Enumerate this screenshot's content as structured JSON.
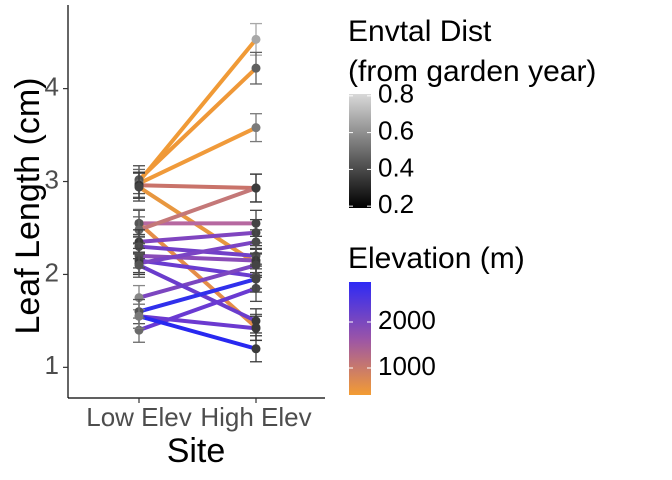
{
  "chart_data": {
    "type": "reaction-norm",
    "x_label": "Site",
    "y_label": "Leaf Length (cm)",
    "categories": [
      "Low Elev",
      "High Elev"
    ],
    "ylim": [
      0.67,
      4.9
    ],
    "yticks": [
      1,
      2,
      3,
      4
    ],
    "series": [
      {
        "color": "#f09a36",
        "values": [
          3.0,
          4.53
        ],
        "errors": [
          0.17,
          0.17
        ],
        "point_colors": [
          "#9a9a9a",
          "#a8a8a8"
        ]
      },
      {
        "color": "#ef9838",
        "values": [
          3.02,
          4.22
        ],
        "errors": [
          0.15,
          0.17
        ],
        "point_colors": [
          "#555555",
          "#606060"
        ]
      },
      {
        "color": "#f09a3a",
        "values": [
          2.98,
          3.58
        ],
        "errors": [
          0.15,
          0.15
        ],
        "point_colors": [
          "#666666",
          "#7a7a7a"
        ]
      },
      {
        "color": "#c9736a",
        "values": [
          2.96,
          2.93
        ],
        "errors": [
          0.14,
          0.15
        ],
        "point_colors": [
          "#333333",
          "#3a3a3a"
        ]
      },
      {
        "color": "#e8973f",
        "values": [
          2.94,
          2.12
        ],
        "errors": [
          0.15,
          0.15
        ],
        "point_colors": [
          "#444444",
          "#4a4a4a"
        ]
      },
      {
        "color": "#e58d48",
        "values": [
          2.55,
          1.43
        ],
        "errors": [
          0.15,
          0.14
        ],
        "point_colors": [
          "#777777",
          "#555555"
        ]
      },
      {
        "color": "#b668a0",
        "values": [
          2.55,
          2.55
        ],
        "errors": [
          0.14,
          0.14
        ],
        "point_colors": [
          "#555555",
          "#444444"
        ]
      },
      {
        "color": "#c47878",
        "values": [
          2.48,
          2.93
        ],
        "errors": [
          0.14,
          0.15
        ],
        "point_colors": [
          "#666666",
          "#3c3c3c"
        ]
      },
      {
        "color": "#8045c0",
        "values": [
          2.35,
          2.45
        ],
        "errors": [
          0.13,
          0.14
        ],
        "point_colors": [
          "#3a3a3a",
          "#444444"
        ]
      },
      {
        "color": "#7240c8",
        "values": [
          2.3,
          2.2
        ],
        "errors": [
          0.13,
          0.14
        ],
        "point_colors": [
          "#4a4a4a",
          "#505050"
        ]
      },
      {
        "color": "#8a4cb8",
        "values": [
          2.2,
          2.15
        ],
        "errors": [
          0.13,
          0.13
        ],
        "point_colors": [
          "#505050",
          "#3a3a3a"
        ]
      },
      {
        "color": "#6a3cd0",
        "values": [
          2.15,
          1.98
        ],
        "errors": [
          0.13,
          0.13
        ],
        "point_colors": [
          "#444444",
          "#555555"
        ]
      },
      {
        "color": "#7a44c4",
        "values": [
          2.12,
          2.35
        ],
        "errors": [
          0.12,
          0.13
        ],
        "point_colors": [
          "#3a3a3a",
          "#4a4a4a"
        ]
      },
      {
        "color": "#7c46c0",
        "values": [
          1.75,
          2.1
        ],
        "errors": [
          0.13,
          0.13
        ],
        "point_colors": [
          "#888888",
          "#444444"
        ]
      },
      {
        "color": "#6a3ccc",
        "values": [
          2.1,
          1.5
        ],
        "errors": [
          0.13,
          0.13
        ],
        "point_colors": [
          "#555555",
          "#3a3a3a"
        ]
      },
      {
        "color": "#6c3ad0",
        "values": [
          1.55,
          1.42
        ],
        "errors": [
          0.13,
          0.13
        ],
        "point_colors": [
          "#777777",
          "#3a3a3a"
        ]
      },
      {
        "color": "#6a3ad2",
        "values": [
          1.4,
          1.85
        ],
        "errors": [
          0.13,
          0.14
        ],
        "point_colors": [
          "#6a6a6a",
          "#4a4a4a"
        ]
      },
      {
        "color": "#3030ec",
        "values": [
          1.6,
          1.95
        ],
        "errors": [
          0.13,
          0.14
        ],
        "point_colors": [
          "#555555",
          "#444444"
        ]
      },
      {
        "color": "#2828f0",
        "values": [
          1.55,
          1.2
        ],
        "errors": [
          0.13,
          0.14
        ],
        "point_colors": [
          "#7a7a7a",
          "#3a3a3a"
        ]
      }
    ],
    "colorbars": [
      {
        "title": [
          "Envtal Dist",
          "(from garden year)"
        ],
        "lim": [
          0.19,
          0.81
        ],
        "ticks": [
          0.2,
          0.4,
          0.6,
          0.8
        ],
        "colors": [
          "#000000",
          "#d9d9d9"
        ]
      },
      {
        "title": [
          "Elevation (m)"
        ],
        "lim": [
          413,
          2870
        ],
        "ticks": [
          1000,
          2000
        ],
        "colors": [
          "#f39c33",
          "#9a54a8",
          "#2e2af5"
        ]
      }
    ]
  }
}
